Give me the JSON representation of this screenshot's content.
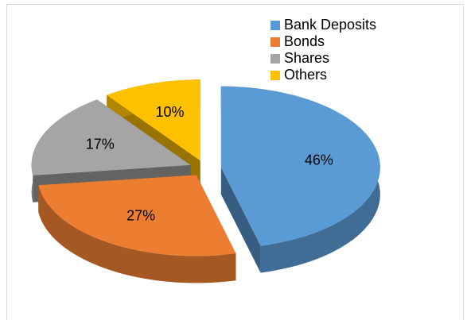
{
  "chart_data": {
    "type": "pie",
    "categories": [
      "Bank Deposits",
      "Bonds",
      "Shares",
      "Others"
    ],
    "values": [
      46,
      27,
      17,
      10
    ],
    "value_labels": [
      "46%",
      "27%",
      "17%",
      "10%"
    ],
    "colors": [
      "#5b9bd5",
      "#ed7d31",
      "#a5a5a5",
      "#ffc000"
    ],
    "legend": "top-right",
    "three_d": true,
    "exploded": true
  }
}
